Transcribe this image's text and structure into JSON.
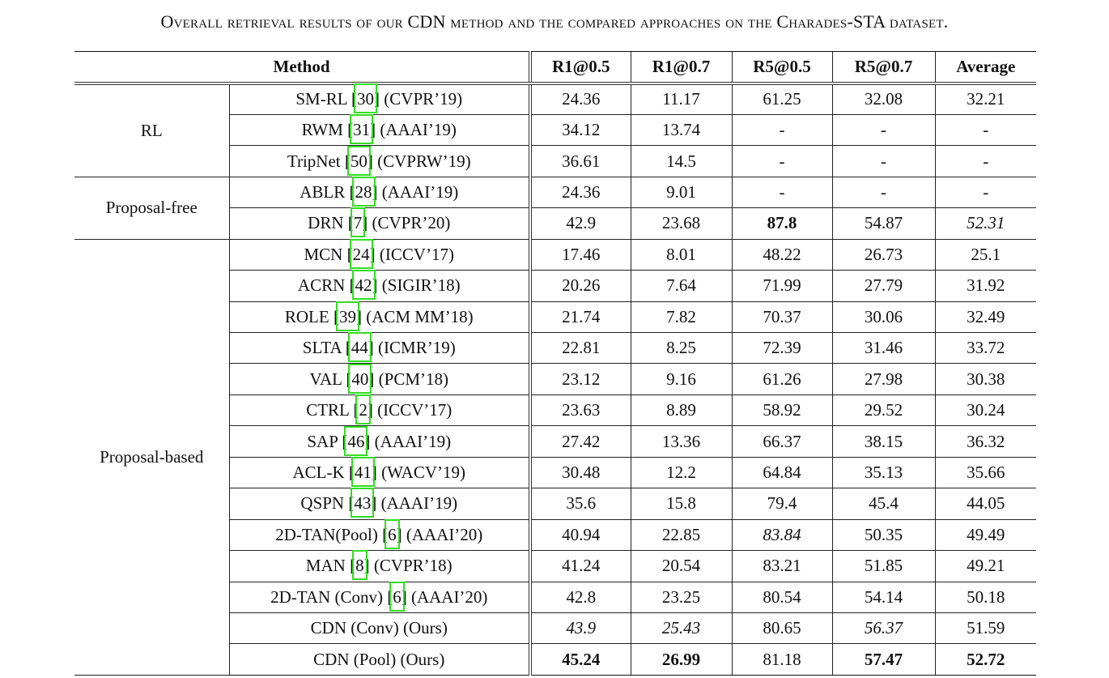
{
  "caption": "Overall retrieval results of our CDN method and the compared approaches on the Charades-STA dataset.",
  "headers": [
    "Method",
    "R1@0.5",
    "R1@0.7",
    "R5@0.5",
    "R5@0.7",
    "Average"
  ],
  "groups": [
    {
      "label": "RL",
      "rows": [
        {
          "name": "SM-RL",
          "ref": "30",
          "venue": "(CVPR’19)",
          "values": [
            "24.36",
            "11.17",
            "61.25",
            "32.08",
            "32.21"
          ]
        },
        {
          "name": "RWM",
          "ref": "31",
          "venue": "(AAAI’19)",
          "values": [
            "34.12",
            "13.74",
            "-",
            "-",
            "-"
          ]
        },
        {
          "name": "TripNet",
          "ref": "50",
          "venue": "(CVPRW’19)",
          "values": [
            "36.61",
            "14.5",
            "-",
            "-",
            "-"
          ]
        }
      ]
    },
    {
      "label": "Proposal-free",
      "rows": [
        {
          "name": "ABLR",
          "ref": "28",
          "venue": "(AAAI’19)",
          "values": [
            "24.36",
            "9.01",
            "-",
            "-",
            "-"
          ]
        },
        {
          "name": "DRN",
          "ref": "7",
          "venue": "(CVPR’20)",
          "values": [
            "42.9",
            "23.68",
            "87.8",
            "54.87",
            "52.31"
          ],
          "bold": [
            2
          ],
          "italic": [
            4
          ]
        }
      ]
    },
    {
      "label": "Proposal-based",
      "rows": [
        {
          "name": "MCN",
          "ref": "24",
          "venue": "(ICCV’17)",
          "values": [
            "17.46",
            "8.01",
            "48.22",
            "26.73",
            "25.1"
          ]
        },
        {
          "name": "ACRN",
          "ref": "42",
          "venue": "(SIGIR’18)",
          "values": [
            "20.26",
            "7.64",
            "71.99",
            "27.79",
            "31.92"
          ]
        },
        {
          "name": "ROLE",
          "ref": "39",
          "venue": "(ACM MM’18)",
          "values": [
            "21.74",
            "7.82",
            "70.37",
            "30.06",
            "32.49"
          ]
        },
        {
          "name": "SLTA",
          "ref": "44",
          "venue": "(ICMR’19)",
          "values": [
            "22.81",
            "8.25",
            "72.39",
            "31.46",
            "33.72"
          ]
        },
        {
          "name": "VAL",
          "ref": "40",
          "venue": "(PCM’18)",
          "values": [
            "23.12",
            "9.16",
            "61.26",
            "27.98",
            "30.38"
          ]
        },
        {
          "name": "CTRL",
          "ref": "2",
          "venue": "(ICCV’17)",
          "values": [
            "23.63",
            "8.89",
            "58.92",
            "29.52",
            "30.24"
          ]
        },
        {
          "name": "SAP",
          "ref": "46",
          "venue": "(AAAI’19)",
          "values": [
            "27.42",
            "13.36",
            "66.37",
            "38.15",
            "36.32"
          ]
        },
        {
          "name": "ACL-K",
          "ref": "41",
          "venue": "(WACV’19)",
          "values": [
            "30.48",
            "12.2",
            "64.84",
            "35.13",
            "35.66"
          ]
        },
        {
          "name": "QSPN",
          "ref": "43",
          "venue": "(AAAI’19)",
          "values": [
            "35.6",
            "15.8",
            "79.4",
            "45.4",
            "44.05"
          ]
        },
        {
          "name": "2D-TAN(Pool)",
          "ref": "6",
          "venue": "(AAAI’20)",
          "values": [
            "40.94",
            "22.85",
            "83.84",
            "50.35",
            "49.49"
          ],
          "italic": [
            2
          ]
        },
        {
          "name": "MAN",
          "ref": "8",
          "venue": "(CVPR’18)",
          "values": [
            "41.24",
            "20.54",
            "83.21",
            "51.85",
            "49.21"
          ]
        },
        {
          "name": "2D-TAN (Conv)",
          "ref": "6",
          "venue": "(AAAI’20)",
          "values": [
            "42.8",
            "23.25",
            "80.54",
            "54.14",
            "50.18"
          ]
        },
        {
          "name": "CDN (Conv) (Ours)",
          "ref": "",
          "venue": "",
          "values": [
            "43.9",
            "25.43",
            "80.65",
            "56.37",
            "51.59"
          ],
          "italic": [
            0,
            1,
            3
          ]
        },
        {
          "name": "CDN (Pool) (Ours)",
          "ref": "",
          "venue": "",
          "values": [
            "45.24",
            "26.99",
            "81.18",
            "57.47",
            "52.72"
          ],
          "bold": [
            0,
            1,
            3,
            4
          ]
        }
      ]
    }
  ],
  "colors": {
    "ref_highlight": "#33dd22",
    "text": "#111111"
  }
}
